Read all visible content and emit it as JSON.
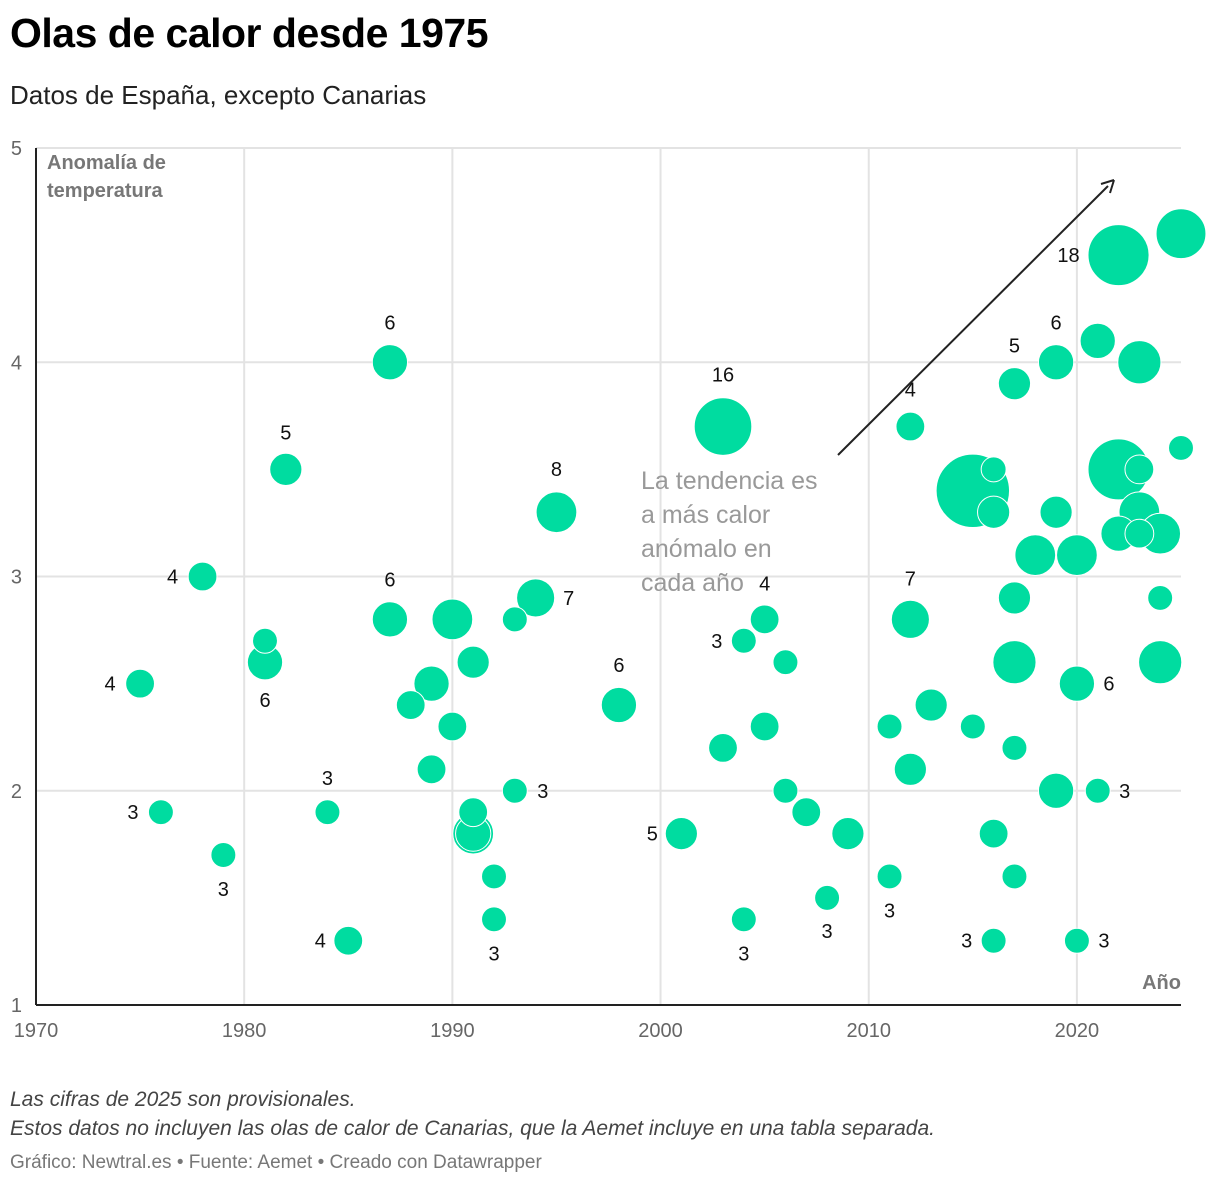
{
  "title": "Olas de calor desde 1975",
  "subtitle": "Datos de España, excepto Canarias",
  "notes": [
    "Las cifras de 2025 son provisionales.",
    "Estos datos no incluyen las olas de calor de Canarias, que la Aemet incluye en una tabla separada."
  ],
  "credits": "Gráfico: Newtral.es • Fuente: Aemet • Creado con Datawrapper",
  "chart_data": {
    "type": "scatter",
    "xlabel": "Año",
    "ylabel": "Anomalía de temperatura",
    "xlim": [
      1970,
      2025
    ],
    "ylim": [
      1,
      5
    ],
    "x_ticks": [
      "1970",
      "1980",
      "1990",
      "2000",
      "2010",
      "2020"
    ],
    "y_ticks": [
      "1",
      "2",
      "3",
      "4",
      "5"
    ],
    "grid": true,
    "bubble_color": "#00dca0",
    "annotation": {
      "text": [
        "La tendencia es",
        "a más calor",
        "anómalo en",
        "cada año"
      ]
    },
    "points": [
      {
        "x": 1975,
        "y": 2.5,
        "size": 4,
        "label": "4"
      },
      {
        "x": 1976,
        "y": 1.9,
        "size": 3,
        "label": "3"
      },
      {
        "x": 1978,
        "y": 3.0,
        "size": 4,
        "label": "4"
      },
      {
        "x": 1979,
        "y": 1.7,
        "size": 3,
        "label": "3"
      },
      {
        "x": 1981,
        "y": 2.6,
        "size": 6,
        "label": "6"
      },
      {
        "x": 1981,
        "y": 2.7,
        "size": 3
      },
      {
        "x": 1982,
        "y": 3.5,
        "size": 5,
        "label": "5"
      },
      {
        "x": 1984,
        "y": 1.9,
        "size": 3,
        "label": "3"
      },
      {
        "x": 1985,
        "y": 1.3,
        "size": 4,
        "label": "4"
      },
      {
        "x": 1987,
        "y": 4.0,
        "size": 6,
        "label": "6"
      },
      {
        "x": 1987,
        "y": 2.8,
        "size": 6,
        "label": "6"
      },
      {
        "x": 1988,
        "y": 2.4,
        "size": 4
      },
      {
        "x": 1989,
        "y": 2.5,
        "size": 6
      },
      {
        "x": 1989,
        "y": 2.1,
        "size": 4
      },
      {
        "x": 1990,
        "y": 2.8,
        "size": 8
      },
      {
        "x": 1990,
        "y": 2.3,
        "size": 4
      },
      {
        "x": 1991,
        "y": 2.6,
        "size": 5
      },
      {
        "x": 1991,
        "y": 1.9,
        "size": 4
      },
      {
        "x": 1991,
        "y": 1.8,
        "size": 8
      },
      {
        "x": 1991,
        "y": 1.8,
        "size": 6
      },
      {
        "x": 1992,
        "y": 1.6,
        "size": 3
      },
      {
        "x": 1992,
        "y": 1.4,
        "size": 3,
        "label": "3"
      },
      {
        "x": 1993,
        "y": 2.8,
        "size": 3
      },
      {
        "x": 1993,
        "y": 2.0,
        "size": 3,
        "label": "3"
      },
      {
        "x": 1994,
        "y": 2.9,
        "size": 7,
        "label": "7"
      },
      {
        "x": 1995,
        "y": 3.3,
        "size": 8,
        "label": "8"
      },
      {
        "x": 1998,
        "y": 2.4,
        "size": 6,
        "label": "6"
      },
      {
        "x": 2001,
        "y": 1.8,
        "size": 5,
        "label": "5"
      },
      {
        "x": 2003,
        "y": 3.7,
        "size": 16,
        "label": "16"
      },
      {
        "x": 2003,
        "y": 2.2,
        "size": 4
      },
      {
        "x": 2004,
        "y": 2.7,
        "size": 3,
        "label": "3"
      },
      {
        "x": 2004,
        "y": 1.4,
        "size": 3,
        "label": "3"
      },
      {
        "x": 2005,
        "y": 2.8,
        "size": 4,
        "label": "4"
      },
      {
        "x": 2005,
        "y": 2.3,
        "size": 4
      },
      {
        "x": 2006,
        "y": 2.6,
        "size": 3
      },
      {
        "x": 2006,
        "y": 2.0,
        "size": 3
      },
      {
        "x": 2007,
        "y": 1.9,
        "size": 4
      },
      {
        "x": 2008,
        "y": 1.5,
        "size": 3,
        "label": "3"
      },
      {
        "x": 2009,
        "y": 1.8,
        "size": 5
      },
      {
        "x": 2011,
        "y": 2.3,
        "size": 3
      },
      {
        "x": 2011,
        "y": 1.6,
        "size": 3,
        "label": "3"
      },
      {
        "x": 2012,
        "y": 3.7,
        "size": 4,
        "label": "4"
      },
      {
        "x": 2012,
        "y": 2.8,
        "size": 7,
        "label": "7"
      },
      {
        "x": 2012,
        "y": 2.1,
        "size": 5
      },
      {
        "x": 2013,
        "y": 2.4,
        "size": 5
      },
      {
        "x": 2015,
        "y": 3.4,
        "size": 26
      },
      {
        "x": 2015,
        "y": 2.3,
        "size": 3
      },
      {
        "x": 2016,
        "y": 3.5,
        "size": 3
      },
      {
        "x": 2016,
        "y": 3.3,
        "size": 5
      },
      {
        "x": 2016,
        "y": 1.8,
        "size": 4
      },
      {
        "x": 2016,
        "y": 1.3,
        "size": 3,
        "label": "3"
      },
      {
        "x": 2017,
        "y": 3.9,
        "size": 5,
        "label": "5"
      },
      {
        "x": 2017,
        "y": 2.9,
        "size": 5
      },
      {
        "x": 2017,
        "y": 2.6,
        "size": 9
      },
      {
        "x": 2017,
        "y": 2.2,
        "size": 3
      },
      {
        "x": 2017,
        "y": 1.6,
        "size": 3
      },
      {
        "x": 2018,
        "y": 3.1,
        "size": 8
      },
      {
        "x": 2019,
        "y": 4.0,
        "size": 6,
        "label": "6"
      },
      {
        "x": 2019,
        "y": 3.3,
        "size": 5
      },
      {
        "x": 2019,
        "y": 2.0,
        "size": 6
      },
      {
        "x": 2020,
        "y": 3.1,
        "size": 8
      },
      {
        "x": 2020,
        "y": 2.5,
        "size": 6,
        "label": "6"
      },
      {
        "x": 2020,
        "y": 1.3,
        "size": 3,
        "label": "3"
      },
      {
        "x": 2021,
        "y": 4.1,
        "size": 6
      },
      {
        "x": 2021,
        "y": 2.0,
        "size": 3,
        "label": "3"
      },
      {
        "x": 2022,
        "y": 4.5,
        "size": 18,
        "label": "18"
      },
      {
        "x": 2022,
        "y": 3.5,
        "size": 18
      },
      {
        "x": 2022,
        "y": 3.2,
        "size": 6
      },
      {
        "x": 2023,
        "y": 4.0,
        "size": 9
      },
      {
        "x": 2023,
        "y": 3.5,
        "size": 4
      },
      {
        "x": 2023,
        "y": 3.3,
        "size": 8
      },
      {
        "x": 2023,
        "y": 3.2,
        "size": 4
      },
      {
        "x": 2024,
        "y": 3.2,
        "size": 8
      },
      {
        "x": 2024,
        "y": 2.9,
        "size": 3
      },
      {
        "x": 2024,
        "y": 2.6,
        "size": 9
      },
      {
        "x": 2025,
        "y": 4.6,
        "size": 12
      },
      {
        "x": 2025,
        "y": 3.6,
        "size": 3
      }
    ]
  }
}
